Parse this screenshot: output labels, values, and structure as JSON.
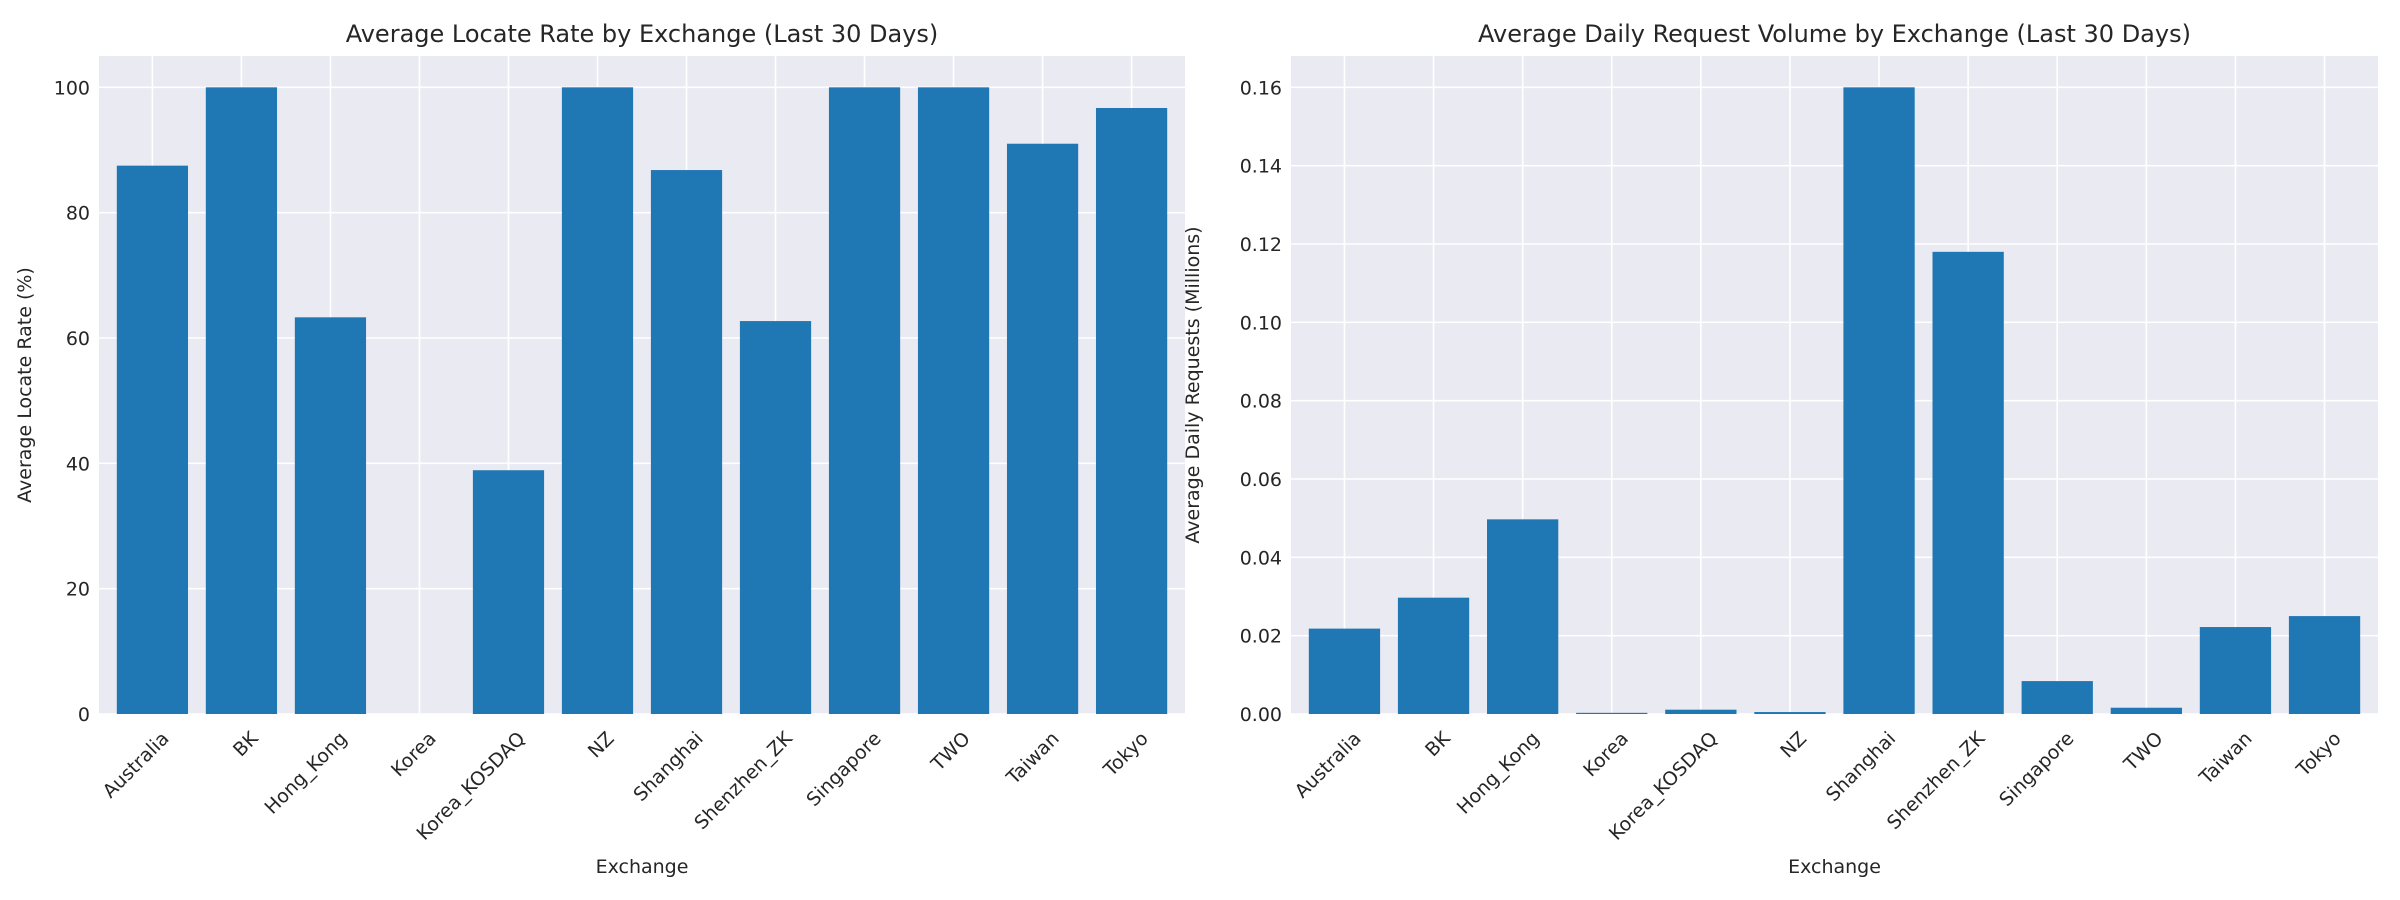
{
  "chart_data": [
    {
      "type": "bar",
      "title": "Average Locate Rate by Exchange (Last 30 Days)",
      "xlabel": "Exchange",
      "ylabel": "Average Locate Rate (%)",
      "categories": [
        "Australia",
        "BK",
        "Hong_Kong",
        "Korea",
        "Korea_KOSDAQ",
        "NZ",
        "Shanghai",
        "Shenzhen_ZK",
        "Singapore",
        "TWO",
        "Taiwan",
        "Tokyo"
      ],
      "values": [
        87.5,
        100,
        63.3,
        0,
        38.9,
        100,
        86.8,
        62.7,
        100,
        100,
        91.0,
        96.7
      ],
      "ylim": [
        0,
        105
      ],
      "yticks": [
        0,
        20,
        40,
        60,
        80,
        100
      ],
      "ytick_labels": [
        "0",
        "20",
        "40",
        "60",
        "80",
        "100"
      ],
      "grid": true,
      "bar_color": "#1f77b4",
      "background_color": "#eaeaf2"
    },
    {
      "type": "bar",
      "title": "Average Daily Request Volume by Exchange (Last 30 Days)",
      "xlabel": "Exchange",
      "ylabel": "Average Daily Requests (Millions)",
      "categories": [
        "Australia",
        "BK",
        "Hong_Kong",
        "Korea",
        "Korea_KOSDAQ",
        "NZ",
        "Shanghai",
        "Shenzhen_ZK",
        "Singapore",
        "TWO",
        "Taiwan",
        "Tokyo"
      ],
      "values": [
        0.0218,
        0.0297,
        0.0497,
        0.0003,
        0.0011,
        0.0005,
        0.16,
        0.118,
        0.0084,
        0.0016,
        0.0222,
        0.025
      ],
      "ylim": [
        0,
        0.168
      ],
      "yticks": [
        0,
        0.02,
        0.04,
        0.06,
        0.08,
        0.1,
        0.12,
        0.14,
        0.16
      ],
      "ytick_labels": [
        "0.00",
        "0.02",
        "0.04",
        "0.06",
        "0.08",
        "0.10",
        "0.12",
        "0.14",
        "0.16"
      ],
      "grid": true,
      "bar_color": "#1f77b4",
      "background_color": "#eaeaf2"
    }
  ]
}
